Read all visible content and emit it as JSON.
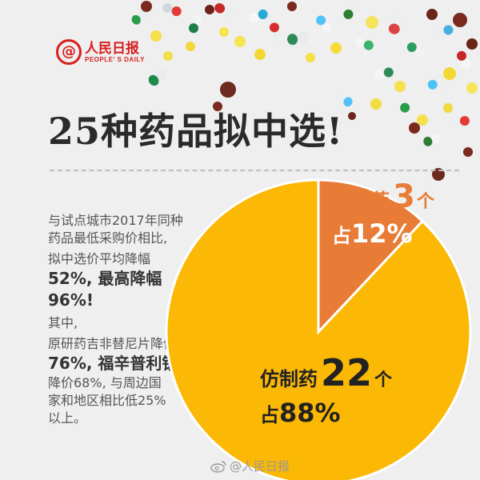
{
  "brand": {
    "name": "人民日报",
    "name_en": "PEOPLE' S DAILY",
    "mark": "@",
    "color": "#d81e1e"
  },
  "title": "25种药品拟中选!",
  "body_lines": [
    "与试点城市2017年同种",
    "药品最低采购价相比,",
    "拟中选价平均降幅",
    "52%, 最高降幅",
    "96%!",
    "其中,",
    "原研药吉非替尼片降价",
    "76%, 福辛普利钠片",
    "降价68%, 与周边国",
    "家和地区相比低25%",
    "以上。"
  ],
  "chart_data": {
    "type": "pie",
    "title": "",
    "slices": [
      {
        "label": "原研药",
        "count": 3,
        "unit": "个",
        "share_prefix": "占",
        "percent": 12,
        "percent_text": "12%",
        "color": "#e87b35",
        "label_color": "#e87b35"
      },
      {
        "label": "仿制药",
        "count": 22,
        "unit": "个",
        "share_prefix": "占",
        "percent": 88,
        "percent_text": "88%",
        "color": "#fbb805",
        "label_color": "#222222"
      }
    ],
    "separator_color": "#ffffff"
  },
  "watermark": "@人民日报",
  "icons": {
    "logo": "at-circle-logo-icon",
    "watermark": "weibo-icon",
    "decor": "pills-capsules-decoration"
  }
}
